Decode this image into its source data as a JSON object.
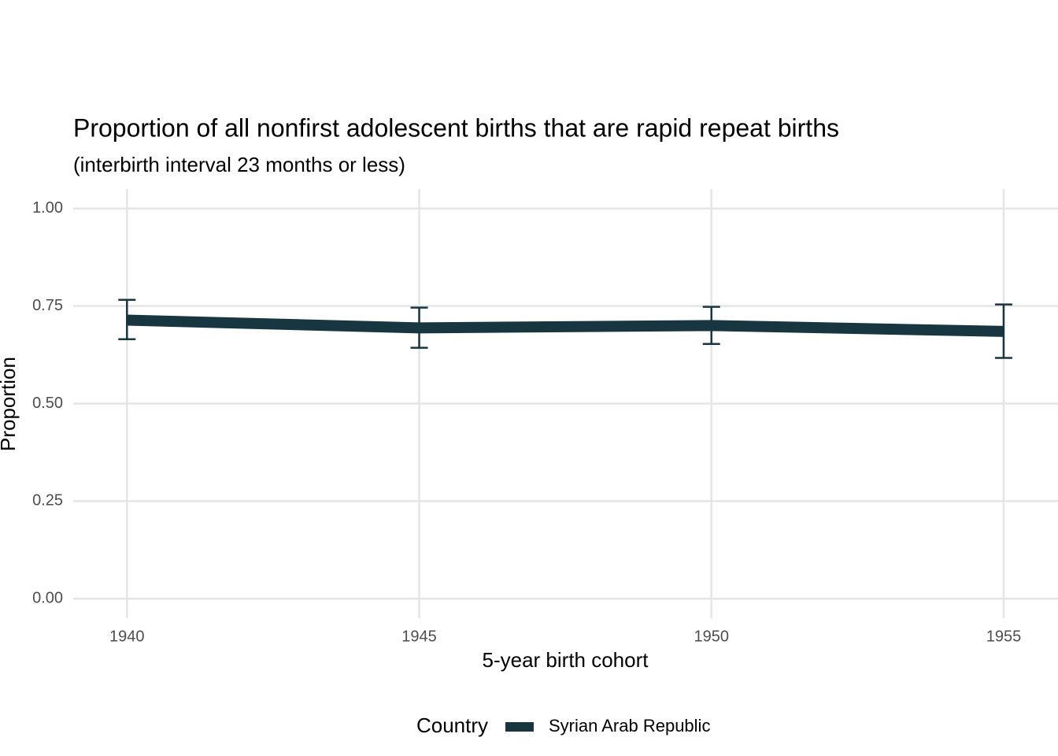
{
  "chart_data": {
    "type": "line",
    "title": "Proportion of all nonfirst adolescent births that are rapid repeat births",
    "subtitle": "(interbirth interval 23 months or less)",
    "x_label": "5-year birth cohort",
    "y_label": "Proportion",
    "legend_title": "Country",
    "x": [
      1940,
      1945,
      1950,
      1955
    ],
    "series": [
      {
        "name": "Syrian Arab Republic",
        "color": "#17363f",
        "values": [
          0.714,
          0.694,
          0.7,
          0.685
        ],
        "lower": [
          0.665,
          0.643,
          0.653,
          0.617
        ],
        "upper": [
          0.766,
          0.746,
          0.748,
          0.754
        ]
      }
    ],
    "xlim": [
      1939.08,
      1955.93
    ],
    "xticks": [
      1940,
      1945,
      1950,
      1955
    ],
    "ylim": [
      -0.05,
      1.05
    ],
    "yticks": [
      {
        "value": 0,
        "label": "0.00"
      },
      {
        "value": 0.25,
        "label": "0.25"
      },
      {
        "value": 0.5,
        "label": "0.50"
      },
      {
        "value": 0.75,
        "label": "0.75"
      },
      {
        "value": 1,
        "label": "1.00"
      }
    ],
    "grid": true,
    "legend": "bottom"
  }
}
